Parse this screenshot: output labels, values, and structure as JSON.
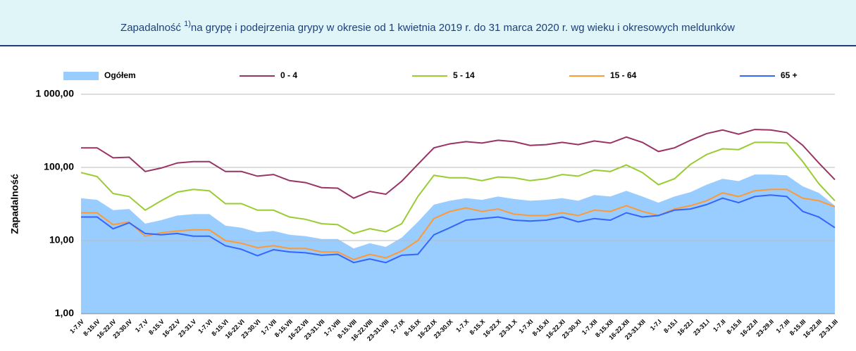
{
  "chart_data": {
    "type": "line",
    "title": {
      "text": "Zapadalność",
      "note": "1)",
      "rest": "na grypę i podejrzenia grypy w okresie od 1 kwietnia 2019 r. do 31 marca 2020 r. wg wieku i okresowych meldunków"
    },
    "y_label": "Zapadalność",
    "log_scale": true,
    "grid": true,
    "legend": "top",
    "ylim": [
      1,
      1000
    ],
    "yticks": [
      {
        "value": 1,
        "label": "1,00"
      },
      {
        "value": 10,
        "label": "10,00"
      },
      {
        "value": 100,
        "label": "100,00"
      },
      {
        "value": 1000,
        "label": "1 000,00"
      }
    ],
    "categories": [
      "1-7.IV",
      "8-15.IV",
      "16-22.IV",
      "23-30.IV",
      "1-7.V",
      "8-15.V",
      "16-22.V",
      "23-31.V",
      "1-7.VI",
      "8-15.VI",
      "16-22.VI",
      "23-30.VI",
      "1-7.VII",
      "8-15.VII",
      "16-22.VII",
      "23-31.VII",
      "1-7.VIII",
      "8-15.VIII",
      "16-22.VIII",
      "23-31.VIII",
      "1-7.IX",
      "8-15.IX",
      "16-22.IX",
      "23-30.IX",
      "1-7.X",
      "8-15.X",
      "16-22.X",
      "23-31.X",
      "1-7.XI",
      "8-15.XI",
      "16-22.XI",
      "23-30.XI",
      "1-7.XII",
      "8-15.XII",
      "16-22.XII",
      "23-31.XII",
      "1-7.I",
      "8-15.I",
      "16-22.I",
      "23-31.I",
      "1-7.II",
      "8-15.II",
      "16-22.II",
      "23-29.II",
      "1-7.III",
      "8-15.III",
      "16-22.III",
      "23-31.III"
    ],
    "series": [
      {
        "name": "Ogółem",
        "type": "area",
        "color": "#99ccff",
        "values": [
          38,
          36,
          26,
          27,
          17,
          19,
          22,
          23,
          23,
          16,
          15,
          13,
          13.5,
          12,
          11.5,
          10.5,
          10.5,
          7.8,
          9.2,
          8.2,
          11,
          18,
          31,
          35,
          38,
          36,
          40,
          37,
          35,
          36,
          38,
          35,
          42,
          40,
          48,
          40,
          33,
          40,
          46,
          58,
          70,
          65,
          80,
          80,
          78,
          55,
          45,
          30
        ]
      },
      {
        "name": "0 - 4",
        "type": "line",
        "color": "#993366",
        "values": [
          185,
          185,
          135,
          138,
          88,
          98,
          115,
          120,
          120,
          88,
          88,
          76,
          80,
          66,
          62,
          53,
          52,
          38,
          47,
          43,
          65,
          110,
          185,
          210,
          225,
          215,
          235,
          225,
          200,
          205,
          220,
          205,
          230,
          215,
          260,
          220,
          165,
          185,
          235,
          290,
          325,
          285,
          330,
          325,
          300,
          200,
          115,
          68
        ]
      },
      {
        "name": "5 - 14",
        "type": "line",
        "color": "#99cc33",
        "values": [
          85,
          75,
          44,
          40,
          26,
          35,
          46,
          50,
          48,
          32,
          32,
          26,
          26,
          21,
          19.5,
          17,
          16.5,
          12.5,
          14.5,
          13.2,
          17,
          40,
          78,
          72,
          72,
          66,
          74,
          72,
          66,
          70,
          80,
          76,
          92,
          88,
          108,
          85,
          58,
          70,
          110,
          150,
          180,
          175,
          220,
          220,
          215,
          120,
          60,
          35
        ]
      },
      {
        "name": "15 - 64",
        "type": "line",
        "color": "#ff9933",
        "values": [
          24,
          24,
          16.5,
          18,
          11.5,
          12.8,
          13.5,
          14,
          14,
          10,
          9.2,
          8,
          8.5,
          7.8,
          7.8,
          7,
          7,
          5.5,
          6.5,
          5.8,
          7.2,
          10,
          20,
          25,
          28,
          25,
          27,
          23,
          22,
          22,
          24,
          22,
          26,
          25,
          30,
          25,
          22,
          27,
          30,
          35,
          45,
          40,
          48,
          50,
          50,
          38,
          35,
          29
        ]
      },
      {
        "name": "65 +",
        "type": "line",
        "color": "#3366ff",
        "values": [
          21,
          21,
          14.5,
          17.5,
          12.5,
          12,
          12.5,
          11.5,
          11.5,
          8.5,
          7.6,
          6.2,
          7.5,
          7,
          6.8,
          6.3,
          6.5,
          5,
          5.6,
          5,
          6.3,
          6.5,
          12,
          15,
          19,
          20,
          21,
          19,
          18.5,
          19,
          21,
          18,
          20,
          19,
          24,
          21,
          22,
          26,
          27,
          31,
          38,
          33,
          40,
          42,
          40,
          25,
          21,
          15
        ]
      }
    ]
  }
}
